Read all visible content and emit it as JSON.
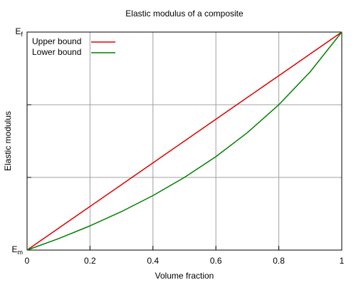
{
  "chart_data": {
    "type": "line",
    "title": "Elastic modulus of a composite",
    "xlabel": "Volume fraction",
    "ylabel": "Elastic modulus",
    "x": [
      0,
      0.1,
      0.2,
      0.3,
      0.4,
      0.5,
      0.6,
      0.7,
      0.8,
      0.9,
      1
    ],
    "series": [
      {
        "name": "Upper bound",
        "color": "#e00000",
        "values": [
          1,
          1.1,
          1.2,
          1.3,
          1.4,
          1.5,
          1.6,
          1.7,
          1.8,
          1.9,
          2
        ]
      },
      {
        "name": "Lower bound",
        "color": "#008000",
        "values": [
          1,
          1.0526,
          1.1111,
          1.1765,
          1.25,
          1.3333,
          1.4286,
          1.5385,
          1.6667,
          1.8182,
          2
        ]
      }
    ],
    "xlim": [
      0,
      1
    ],
    "xticks": [
      0,
      0.2,
      0.4,
      0.6,
      0.8,
      1
    ],
    "ylim": [
      1,
      2
    ],
    "yticks": [
      {
        "value": 1,
        "label": "Em"
      },
      {
        "value": 2,
        "label": "Ef"
      }
    ],
    "ygrid": [
      1.3333,
      1.6667
    ],
    "grid": true,
    "legend": "upper left"
  }
}
